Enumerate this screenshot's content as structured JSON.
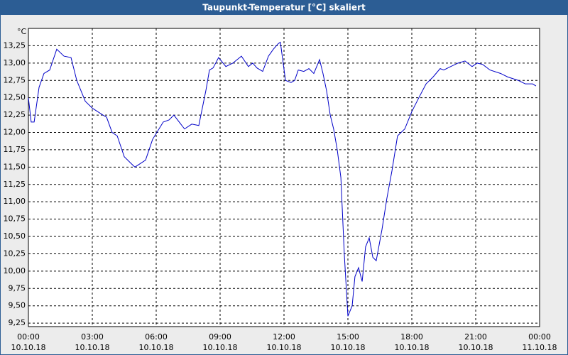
{
  "chart_data": {
    "type": "line",
    "title": "Taupunkt-Temperatur [°C] skaliert",
    "ylabel": "°C",
    "x": [
      0,
      0.13,
      0.27,
      0.5,
      0.73,
      1,
      1.33,
      1.67,
      2,
      2.27,
      2.67,
      3,
      3.5,
      3.67,
      3.93,
      4.17,
      4.5,
      4.83,
      5,
      5.5,
      5.83,
      6.33,
      6.6,
      6.83,
      7.33,
      7.67,
      8,
      8.33,
      8.5,
      8.67,
      8.93,
      9.27,
      9.6,
      10,
      10.33,
      10.53,
      10.73,
      11,
      11.27,
      11.5,
      11.73,
      11.83,
      12.07,
      12.33,
      12.5,
      12.67,
      12.93,
      13.17,
      13.4,
      13.67,
      13.83,
      14,
      14.17,
      14.33,
      14.5,
      14.67,
      14.83,
      15,
      15.2,
      15.33,
      15.5,
      15.67,
      15.83,
      16,
      16.17,
      16.33,
      16.6,
      16.83,
      17.07,
      17.33,
      17.67,
      18,
      18.33,
      18.67,
      19,
      19.33,
      19.5,
      19.83,
      20.17,
      20.5,
      20.83,
      21.07,
      21.33,
      21.67,
      22.17,
      22.5,
      23,
      23.33,
      23.67,
      23.83
    ],
    "series": [
      {
        "name": "Taupunkt-Temperatur",
        "color": "#0000c8",
        "values": [
          12.5,
          12.15,
          12.15,
          12.65,
          12.85,
          12.9,
          13.2,
          13.1,
          13.08,
          12.75,
          12.45,
          12.35,
          12.25,
          12.22,
          12.0,
          11.95,
          11.65,
          11.55,
          11.5,
          11.6,
          11.9,
          12.15,
          12.18,
          12.25,
          12.05,
          12.12,
          12.1,
          12.6,
          12.9,
          12.93,
          13.08,
          12.95,
          13.0,
          13.1,
          12.95,
          13.0,
          12.93,
          12.88,
          13.1,
          13.2,
          13.28,
          13.3,
          12.75,
          12.72,
          12.75,
          12.9,
          12.88,
          12.92,
          12.85,
          13.05,
          12.85,
          12.6,
          12.25,
          12.05,
          11.75,
          11.35,
          10.25,
          9.35,
          9.5,
          9.92,
          10.05,
          9.85,
          10.35,
          10.48,
          10.2,
          10.15,
          10.6,
          11.05,
          11.45,
          11.95,
          12.05,
          12.3,
          12.5,
          12.7,
          12.8,
          12.92,
          12.9,
          12.95,
          13.0,
          13.03,
          12.95,
          13.0,
          12.98,
          12.9,
          12.85,
          12.8,
          12.75,
          12.7,
          12.7,
          12.67
        ]
      }
    ],
    "xlim": [
      0,
      24
    ],
    "xticks": [
      {
        "value": 0,
        "label": "00:00"
      },
      {
        "value": 3,
        "label": "03:00"
      },
      {
        "value": 6,
        "label": "06:00"
      },
      {
        "value": 9,
        "label": "09:00"
      },
      {
        "value": 12,
        "label": "12:00"
      },
      {
        "value": 15,
        "label": "15:00"
      },
      {
        "value": 18,
        "label": "18:00"
      },
      {
        "value": 21,
        "label": "21:00"
      },
      {
        "value": 24,
        "label": "00:00"
      }
    ],
    "xtick_dates": [
      "10.10.18",
      "10.10.18",
      "10.10.18",
      "10.10.18",
      "10.10.18",
      "10.10.18",
      "10.10.18",
      "10.10.18",
      "11.10.18"
    ],
    "ylim": [
      9.2,
      13.5
    ],
    "yticks": [
      {
        "value": 9.25,
        "label": "9,25"
      },
      {
        "value": 9.5,
        "label": "9,50"
      },
      {
        "value": 9.75,
        "label": "9,75"
      },
      {
        "value": 10,
        "label": "10,00"
      },
      {
        "value": 10.25,
        "label": "10,25"
      },
      {
        "value": 10.5,
        "label": "10,50"
      },
      {
        "value": 10.75,
        "label": "10,75"
      },
      {
        "value": 11,
        "label": "11,00"
      },
      {
        "value": 11.25,
        "label": "11,25"
      },
      {
        "value": 11.5,
        "label": "11,50"
      },
      {
        "value": 11.75,
        "label": "11,75"
      },
      {
        "value": 12,
        "label": "12,00"
      },
      {
        "value": 12.25,
        "label": "12,25"
      },
      {
        "value": 12.5,
        "label": "12,50"
      },
      {
        "value": 12.75,
        "label": "12,75"
      },
      {
        "value": 13,
        "label": "13,00"
      },
      {
        "value": 13.25,
        "label": "13,25"
      }
    ],
    "grid": true
  }
}
